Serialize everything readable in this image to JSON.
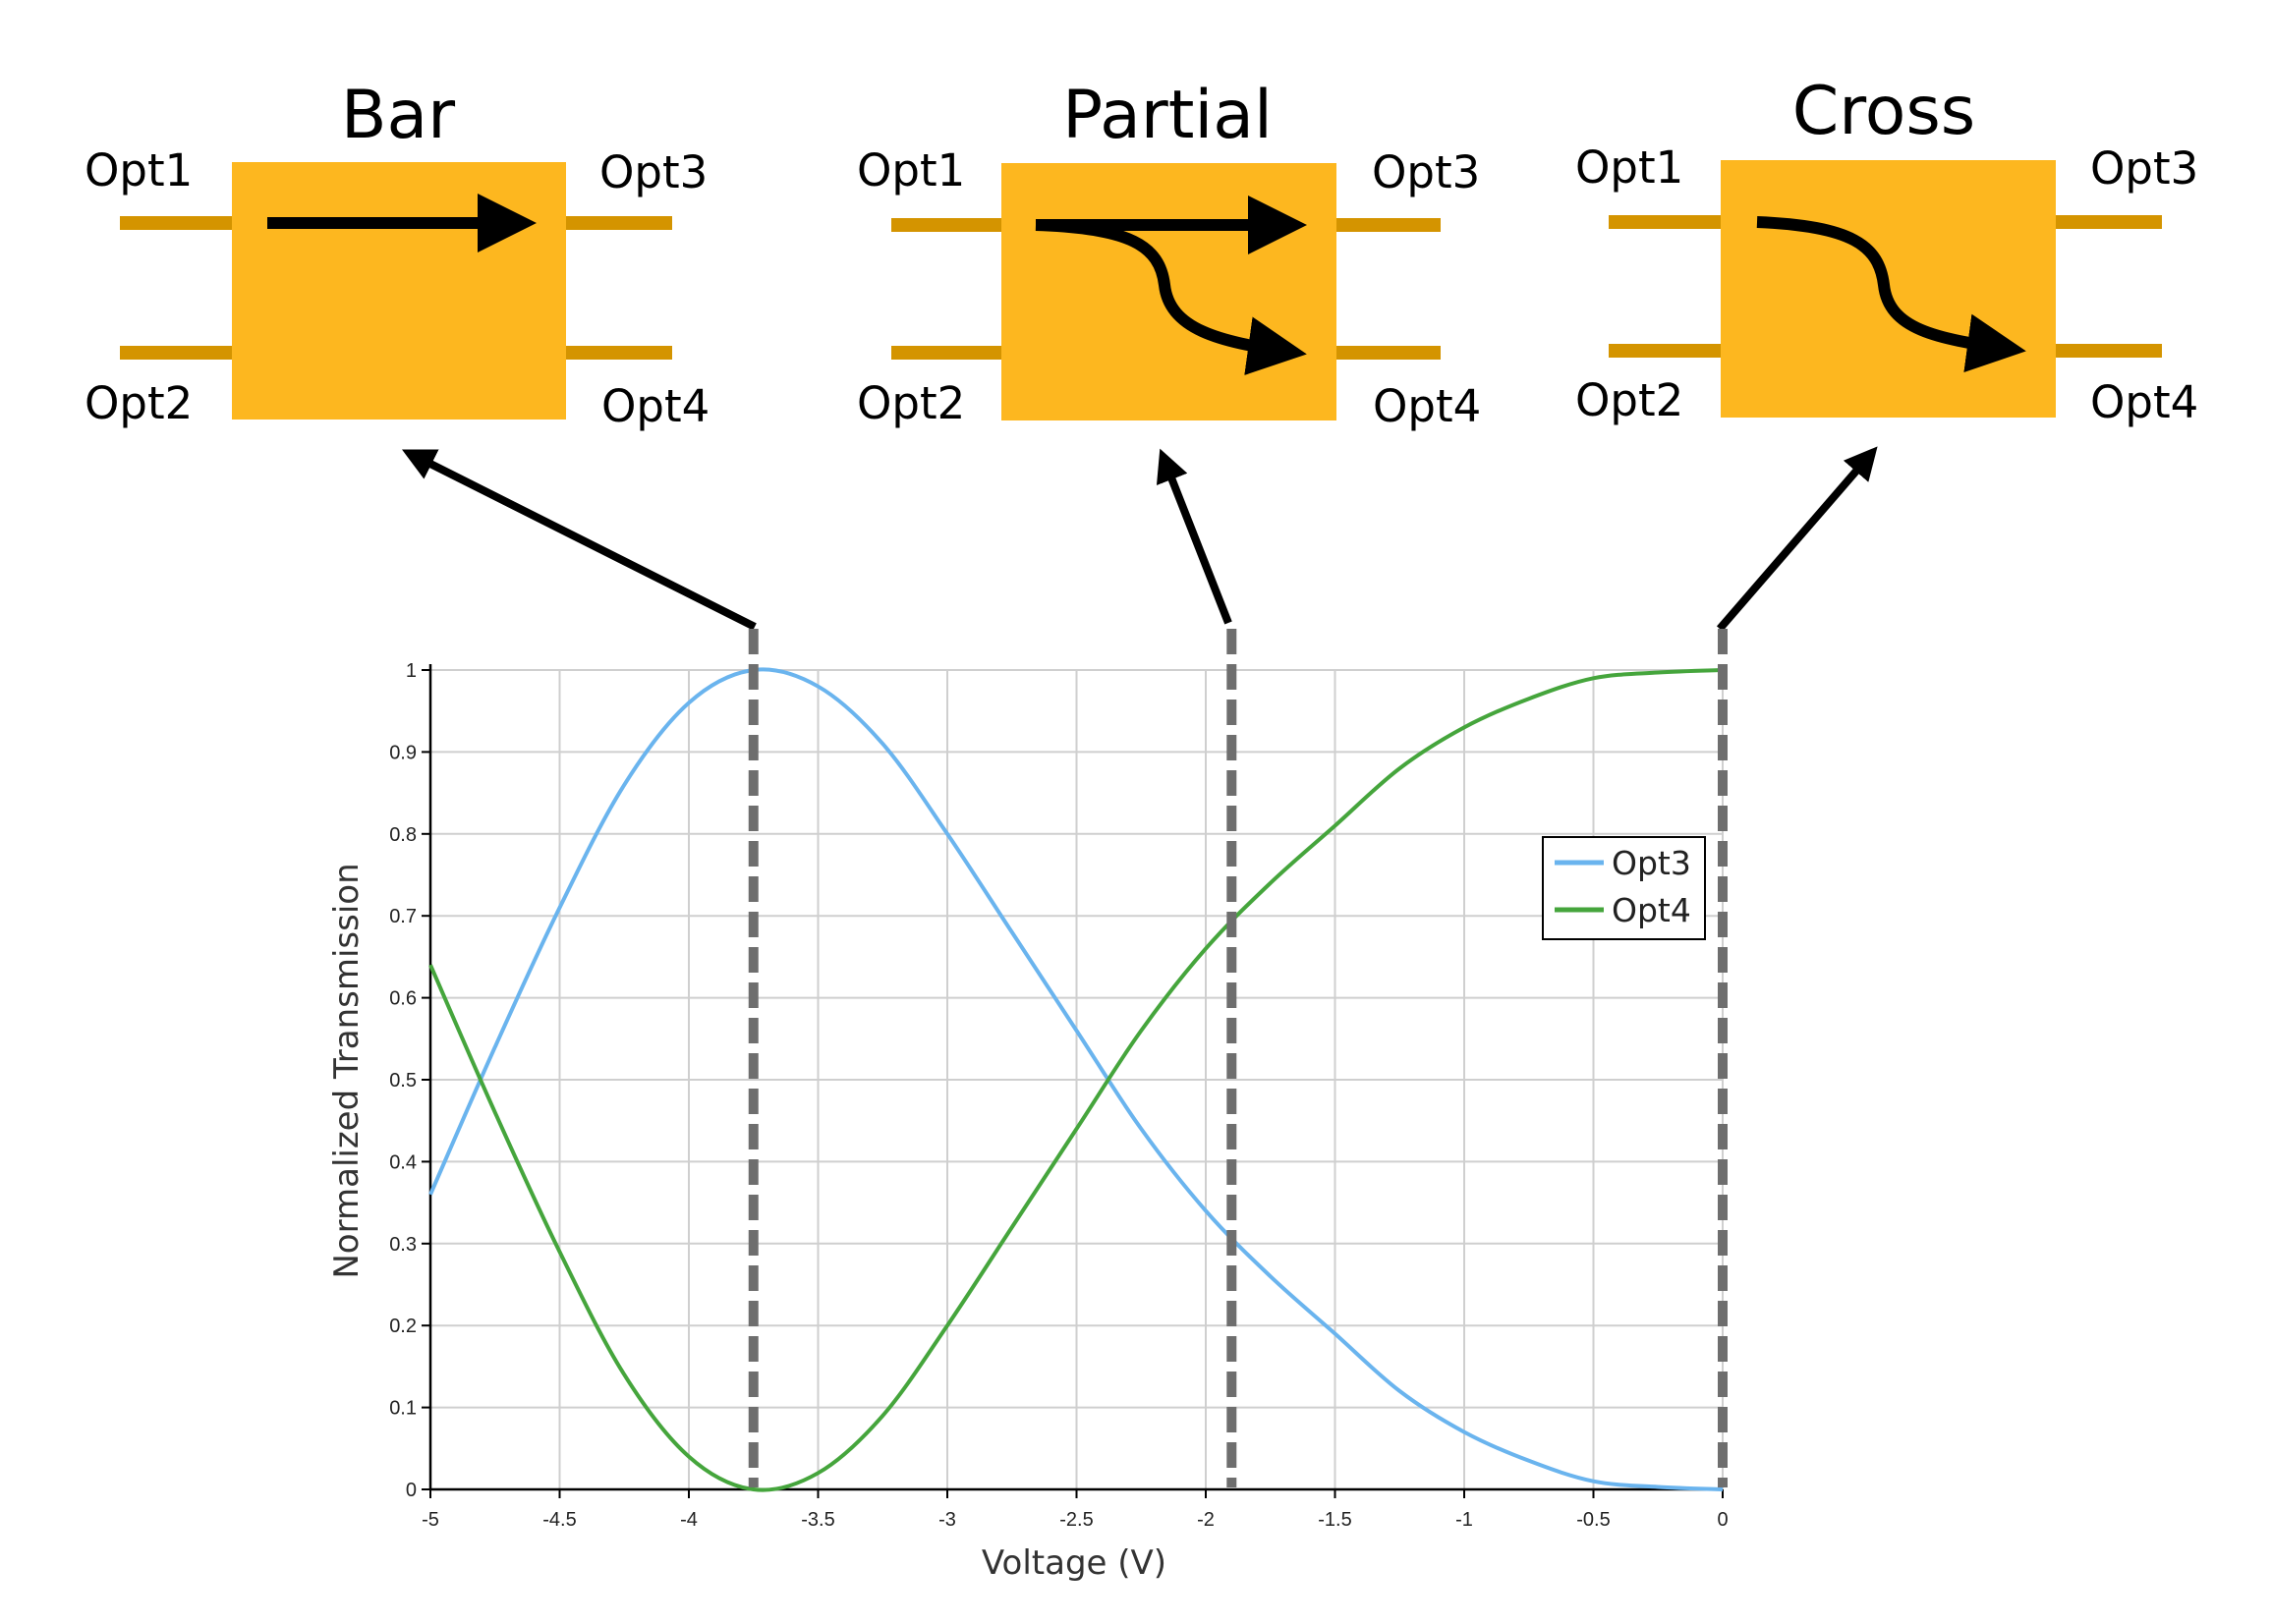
{
  "blocks": [
    {
      "title": "Bar",
      "ports": {
        "in_top": "Opt1",
        "in_bottom": "Opt2",
        "out_top": "Opt3",
        "out_bottom": "Opt4"
      }
    },
    {
      "title": "Partial",
      "ports": {
        "in_top": "Opt1",
        "in_bottom": "Opt2",
        "out_top": "Opt3",
        "out_bottom": "Opt4"
      }
    },
    {
      "title": "Cross",
      "ports": {
        "in_top": "Opt1",
        "in_bottom": "Opt2",
        "out_top": "Opt3",
        "out_bottom": "Opt4"
      }
    }
  ],
  "colors": {
    "block_fill": "#FDB71F",
    "waveguide": "#D49400",
    "arrow": "#000000",
    "opt3_line": "#6AB4EE",
    "opt4_line": "#45A53C",
    "marker": "#6E6E6E",
    "grid": "#CFCFCF"
  },
  "chart_data": {
    "type": "line",
    "xlabel": "Voltage (V)",
    "ylabel": "Normalized Transmission",
    "xlim": [
      -5,
      0
    ],
    "ylim": [
      0,
      1
    ],
    "xticks": [
      "-5",
      "-4.5",
      "-4",
      "-3.5",
      "-3",
      "-2.5",
      "-2",
      "-1.5",
      "-1",
      "-0.5",
      "0"
    ],
    "yticks": [
      "0",
      "0.1",
      "0.2",
      "0.3",
      "0.4",
      "0.5",
      "0.6",
      "0.7",
      "0.8",
      "0.9",
      "1"
    ],
    "grid": true,
    "legend_position": "upper-right",
    "x": [
      -5,
      -4.75,
      -4.5,
      -4.25,
      -4,
      -3.75,
      -3.5,
      -3.25,
      -3,
      -2.75,
      -2.5,
      -2.25,
      -2,
      -1.75,
      -1.5,
      -1.25,
      -1,
      -0.75,
      -0.5,
      -0.25,
      0
    ],
    "series": [
      {
        "name": "Opt3",
        "values": [
          0.36,
          0.54,
          0.71,
          0.86,
          0.96,
          1.0,
          0.98,
          0.91,
          0.8,
          0.68,
          0.56,
          0.44,
          0.34,
          0.26,
          0.19,
          0.12,
          0.07,
          0.035,
          0.01,
          0.003,
          0.0
        ]
      },
      {
        "name": "Opt4",
        "values": [
          0.64,
          0.46,
          0.29,
          0.14,
          0.04,
          0.0,
          0.02,
          0.09,
          0.2,
          0.32,
          0.44,
          0.56,
          0.66,
          0.74,
          0.81,
          0.88,
          0.93,
          0.965,
          0.99,
          0.997,
          1.0
        ]
      }
    ],
    "markers": [
      -3.75,
      -1.9,
      0
    ],
    "marker_targets": [
      "Bar",
      "Partial",
      "Cross"
    ]
  }
}
